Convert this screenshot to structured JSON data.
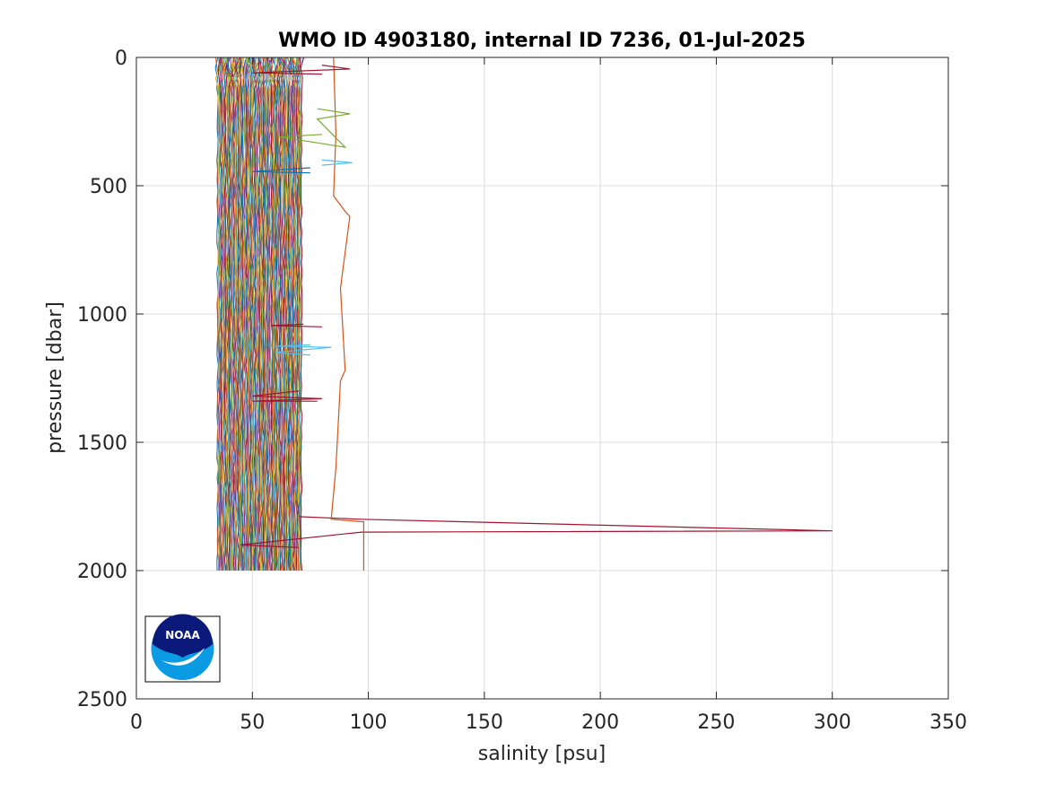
{
  "chart_data": {
    "type": "line",
    "title": "WMO ID 4903180, internal ID 7236, 01-Jul-2025",
    "xlabel": "salinity [psu]",
    "ylabel": "pressure [dbar]",
    "xlim": [
      0,
      350
    ],
    "ylim": [
      0,
      2500
    ],
    "y_reversed": true,
    "grid": true,
    "xticks": [
      0,
      50,
      100,
      150,
      200,
      250,
      300,
      350
    ],
    "yticks": [
      0,
      500,
      1000,
      1500,
      2000,
      2500
    ],
    "xtick_labels": [
      "0",
      "50",
      "100",
      "150",
      "200",
      "250",
      "300",
      "350"
    ],
    "ytick_labels": [
      "0",
      "500",
      "1000",
      "1500",
      "2000",
      "2500"
    ],
    "profiles": {
      "count": 140,
      "salinity_start": 35.0,
      "salinity_step": 0.26,
      "pressure_max": 2000
    },
    "series": [
      {
        "color": "#A2142F",
        "points": [
          [
            70,
            1790
          ],
          [
            97,
            1800
          ],
          [
            300,
            1845
          ],
          [
            97,
            1850
          ],
          [
            45,
            1900
          ],
          [
            70,
            1910
          ]
        ]
      },
      {
        "color": "#D95319",
        "points": [
          [
            85,
            0
          ],
          [
            86,
            300
          ],
          [
            85,
            540
          ],
          [
            90,
            600
          ],
          [
            92,
            620
          ],
          [
            88,
            900
          ],
          [
            90,
            1220
          ],
          [
            88,
            1260
          ],
          [
            86,
            1600
          ],
          [
            84,
            1800
          ],
          [
            98,
            1810
          ],
          [
            98,
            2000
          ]
        ]
      },
      {
        "color": "#0072BD",
        "points": [
          [
            75,
            430
          ],
          [
            50,
            445
          ],
          [
            75,
            450
          ]
        ]
      },
      {
        "color": "#4DBEEE",
        "points": [
          [
            80,
            400
          ],
          [
            93,
            410
          ],
          [
            80,
            420
          ]
        ]
      },
      {
        "color": "#77AC30",
        "points": [
          [
            78,
            200
          ],
          [
            92,
            220
          ],
          [
            78,
            240
          ],
          [
            90,
            350
          ],
          [
            62,
            310
          ],
          [
            80,
            300
          ]
        ]
      },
      {
        "color": "#A2142F",
        "points": [
          [
            80,
            30
          ],
          [
            92,
            45
          ],
          [
            50,
            60
          ],
          [
            80,
            65
          ]
        ]
      },
      {
        "color": "#A2142F",
        "points": [
          [
            70,
            1300
          ],
          [
            50,
            1320
          ],
          [
            80,
            1330
          ],
          [
            50,
            1340
          ],
          [
            78,
            1340
          ]
        ]
      },
      {
        "color": "#A2142F",
        "points": [
          [
            72,
            1040
          ],
          [
            58,
            1045
          ],
          [
            80,
            1050
          ]
        ]
      },
      {
        "color": "#4DBEEE",
        "points": [
          [
            75,
            1120
          ],
          [
            60,
            1125
          ],
          [
            84,
            1130
          ],
          [
            60,
            1150
          ],
          [
            75,
            1160
          ]
        ]
      }
    ],
    "logo": {
      "text": "NOAA"
    }
  }
}
